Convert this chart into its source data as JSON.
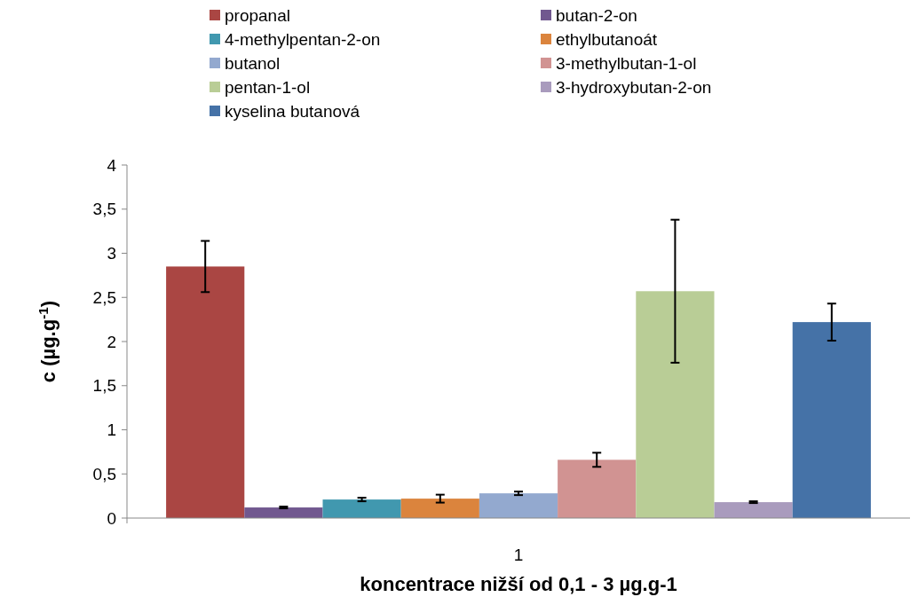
{
  "chart_data": {
    "type": "bar",
    "xlabel": "koncentrace nižší od 0,1 - 3 µg.g-1",
    "ylabel": "c (µg.g$^{-1}$)",
    "categories": [
      "1"
    ],
    "ylim": [
      0,
      4
    ],
    "yticks": [
      0,
      {
        "value": 0.5,
        "label": "0,5"
      },
      1,
      {
        "value": 1.5,
        "label": "1,5"
      },
      2,
      {
        "value": 2.5,
        "label": "2,5"
      },
      3,
      {
        "value": 3.5,
        "label": "3,5"
      },
      4
    ],
    "legend": "top",
    "grid": false,
    "series": [
      {
        "name": "propanal",
        "color": "#aa4643",
        "values": [
          2.85
        ],
        "errors": [
          0.29
        ]
      },
      {
        "name": "butan-2-on",
        "color": "#71588f",
        "values": [
          0.12
        ],
        "errors": [
          0.01
        ]
      },
      {
        "name": "4-methylpentan-2-on",
        "color": "#4198af",
        "values": [
          0.21
        ],
        "errors": [
          0.02
        ]
      },
      {
        "name": "ethylbutanoát",
        "color": "#db843d",
        "values": [
          0.22
        ],
        "errors": [
          0.045
        ]
      },
      {
        "name": "butanol",
        "color": "#93a9cf",
        "values": [
          0.28
        ],
        "errors": [
          0.02
        ]
      },
      {
        "name": "3-methylbutan-1-ol",
        "color": "#d19392",
        "values": [
          0.66
        ],
        "errors": [
          0.08
        ]
      },
      {
        "name": "pentan-1-ol",
        "color": "#b9cd96",
        "values": [
          2.57
        ],
        "errors": [
          0.81
        ]
      },
      {
        "name": "3-hydroxybutan-2-on",
        "color": "#a99bbd",
        "values": [
          0.18
        ],
        "errors": [
          0.01
        ]
      },
      {
        "name": "kyselina butanová",
        "color": "#4572a7",
        "values": [
          2.22
        ],
        "errors": [
          0.21
        ]
      }
    ]
  }
}
